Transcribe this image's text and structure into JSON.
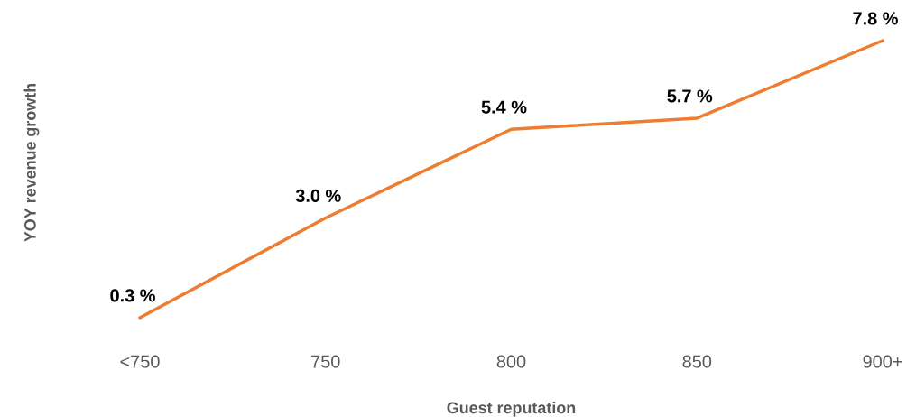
{
  "chart_data": {
    "type": "line",
    "xlabel": "Guest reputation",
    "ylabel": "YOY revenue growth",
    "categories": [
      "<750",
      "750",
      "800",
      "850",
      "900+"
    ],
    "series": [
      {
        "color": "#ed7d31",
        "values": [
          0.3,
          3.0,
          5.4,
          5.7,
          7.8
        ],
        "value_labels": [
          "0.3 %",
          "3.0 %",
          "5.4 %",
          "5.7 %",
          "7.8 %"
        ]
      }
    ],
    "grid": false,
    "tick_labels": "x",
    "marker": "none",
    "line_style": "solid"
  }
}
